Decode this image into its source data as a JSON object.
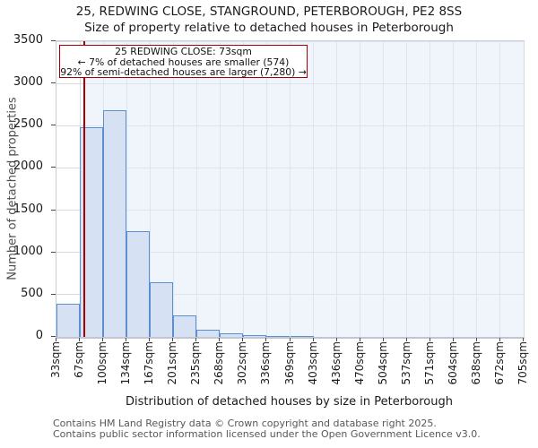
{
  "title": {
    "line1": "25, REDWING CLOSE, STANGROUND, PETERBOROUGH, PE2 8SS",
    "line2": "Size of property relative to detached houses in Peterborough"
  },
  "annotation": {
    "line1": "25 REDWING CLOSE: 73sqm",
    "line2": "← 7% of detached houses are smaller (574)",
    "line3": "92% of semi-detached houses are larger (7,280) →"
  },
  "chart_data": {
    "type": "bar",
    "title": "Size of property relative to detached houses in Peterborough",
    "xlabel": "Distribution of detached houses by size in Peterborough",
    "ylabel": "Number of detached properties",
    "categories": [
      "33sqm",
      "67sqm",
      "100sqm",
      "134sqm",
      "167sqm",
      "201sqm",
      "235sqm",
      "268sqm",
      "302sqm",
      "336sqm",
      "369sqm",
      "403sqm",
      "436sqm",
      "470sqm",
      "504sqm",
      "537sqm",
      "571sqm",
      "604sqm",
      "638sqm",
      "672sqm",
      "705sqm"
    ],
    "values": [
      390,
      2480,
      2680,
      1250,
      650,
      250,
      90,
      40,
      25,
      15,
      10,
      0,
      0,
      0,
      0,
      0,
      0,
      0,
      0,
      0
    ],
    "ylim": [
      0,
      3500
    ],
    "yticks": [
      0,
      500,
      1000,
      1500,
      2000,
      2500,
      3000,
      3500
    ],
    "grid": true,
    "legend": false,
    "marker": {
      "value_sqm": 73,
      "axis_min_sqm": 33,
      "axis_max_sqm": 705,
      "smaller_count": 574,
      "smaller_pct": "7%",
      "larger_count": "7,280",
      "larger_pct": "92%"
    }
  },
  "footer": {
    "line1": "Contains HM Land Registry data © Crown copyright and database right 2025.",
    "line2": "Contains public sector information licensed under the Open Government Licence v3.0."
  },
  "colors": {
    "bar_fill": "#d6e2f4",
    "bar_edge": "#5b8fd0",
    "marker_red": "#a80000",
    "annotation_border": "#a80000",
    "shade_region": "rgba(228,236,250,0.55)",
    "gridline": "#d7dae1",
    "footer_text": "#58585a"
  }
}
